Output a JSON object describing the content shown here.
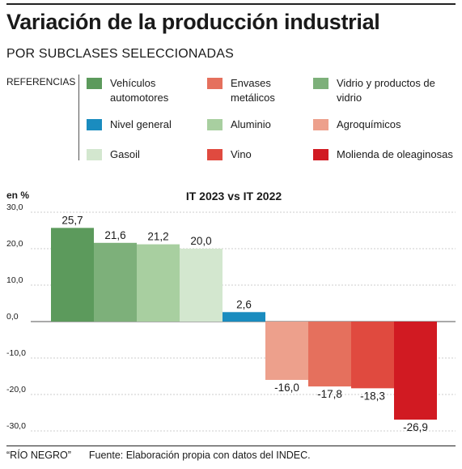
{
  "title": "Variación de la producción industrial",
  "subtitle": "POR SUBCLASES SELECCIONADAS",
  "legend_heading": "REFERENCIAS",
  "legend": [
    {
      "label": "Vehículos automotores",
      "color": "#5c9a5c"
    },
    {
      "label": "Envases metálicos",
      "color": "#e5705d"
    },
    {
      "label": "Vidrio y productos de vidrio",
      "color": "#7db07a"
    },
    {
      "label": "Nivel general",
      "color": "#1a8cbf"
    },
    {
      "label": "Aluminio",
      "color": "#a8cfa0"
    },
    {
      "label": "Agroquímicos",
      "color": "#eda08c"
    },
    {
      "label": "Gasoil",
      "color": "#d3e7cf"
    },
    {
      "label": "Vino",
      "color": "#e04a3f"
    },
    {
      "label": "Molienda de oleaginosas",
      "color": "#d11a22"
    }
  ],
  "chart_data": {
    "type": "bar",
    "title": "IT 2023 vs IT 2022",
    "ylabel": "en %",
    "ylim": [
      -30,
      30
    ],
    "yticks": [
      "30,0",
      "20,0",
      "10,0",
      "0,0",
      "-10,0",
      "-20,0",
      "-30,0"
    ],
    "grid": true,
    "categories": [
      "Vehículos automotores",
      "Vidrio y productos de vidrio",
      "Aluminio",
      "Gasoil",
      "Nivel general",
      "Agroquímicos",
      "Envases metálicos",
      "Vino",
      "Molienda de oleaginosas"
    ],
    "values": [
      25.7,
      21.6,
      21.2,
      20.0,
      2.6,
      -16.0,
      -17.8,
      -18.3,
      -26.9
    ],
    "value_labels": [
      "25,7",
      "21,6",
      "21,2",
      "20,0",
      "2,6",
      "-16,0",
      "-17,8",
      "-18,3",
      "-26,9"
    ],
    "colors": [
      "#5c9a5c",
      "#7db07a",
      "#a8cfa0",
      "#d3e7cf",
      "#1a8cbf",
      "#eda08c",
      "#e5705d",
      "#e04a3f",
      "#d11a22"
    ]
  },
  "footer": {
    "credit": "“RÍO NEGRO”",
    "source": "Fuente: Elaboración propia con datos del INDEC."
  }
}
